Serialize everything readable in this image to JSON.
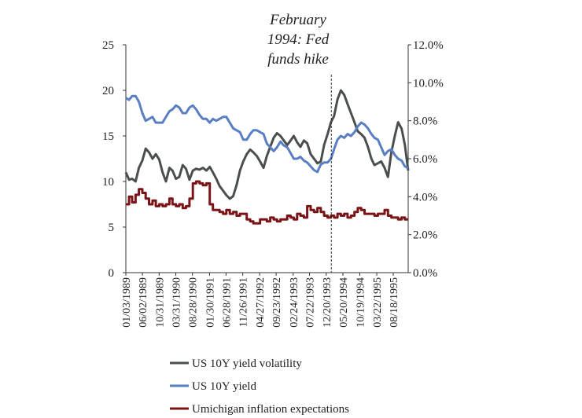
{
  "chart_data": {
    "type": "line",
    "title": "",
    "xlabel": "",
    "ylabel_left": "",
    "ylabel_right": "",
    "x_tick_labels": [
      "01/03/1989",
      "06/02/1989",
      "10/31/1989",
      "03/31/1990",
      "08/28/1990",
      "01/30/1991",
      "06/28/1991",
      "11/26/1991",
      "04/27/1992",
      "09/23/1992",
      "02/24/1993",
      "07/22/1993",
      "12/20/1993",
      "05/20/1994",
      "10/19/1994",
      "03/22/1995",
      "08/18/1995"
    ],
    "x_range": [
      "01/03/1989",
      "12/31/1995"
    ],
    "y_left": {
      "range": [
        0,
        25
      ],
      "ticks": [
        "0",
        "5",
        "10",
        "15",
        "20",
        "25"
      ]
    },
    "y_right": {
      "range": [
        0,
        12
      ],
      "ticks": [
        "0.0%",
        "2.0%",
        "4.0%",
        "6.0%",
        "8.0%",
        "10.0%",
        "12.0%"
      ]
    },
    "grid": false,
    "legend_position": "bottom",
    "annotation": {
      "lines": [
        "February",
        "1994: Fed",
        "funds hike"
      ],
      "x": "02/04/1994"
    },
    "series": [
      {
        "name": "US 10Y yield volatility",
        "axis": "left",
        "color": "#4a4f4c",
        "points": [
          [
            "1989-01-03",
            11.0
          ],
          [
            "1989-02-01",
            10.2
          ],
          [
            "1989-03-01",
            10.3
          ],
          [
            "1989-04-01",
            10.0
          ],
          [
            "1989-05-01",
            11.5
          ],
          [
            "1989-06-01",
            12.3
          ],
          [
            "1989-07-01",
            13.6
          ],
          [
            "1989-08-01",
            13.2
          ],
          [
            "1989-09-01",
            12.5
          ],
          [
            "1989-10-01",
            13.0
          ],
          [
            "1989-11-01",
            12.4
          ],
          [
            "1989-12-01",
            11.0
          ],
          [
            "1990-01-01",
            10.0
          ],
          [
            "1990-02-01",
            11.5
          ],
          [
            "1990-03-01",
            11.2
          ],
          [
            "1990-04-01",
            10.3
          ],
          [
            "1990-05-01",
            10.5
          ],
          [
            "1990-06-01",
            11.8
          ],
          [
            "1990-07-01",
            11.4
          ],
          [
            "1990-08-01",
            10.2
          ],
          [
            "1990-09-01",
            11.2
          ],
          [
            "1990-10-01",
            11.4
          ],
          [
            "1990-11-01",
            11.3
          ],
          [
            "1990-12-01",
            11.5
          ],
          [
            "1991-01-01",
            11.2
          ],
          [
            "1991-02-01",
            11.6
          ],
          [
            "1991-03-01",
            11.0
          ],
          [
            "1991-04-01",
            10.3
          ],
          [
            "1991-05-01",
            9.5
          ],
          [
            "1991-06-01",
            9.0
          ],
          [
            "1991-07-01",
            8.5
          ],
          [
            "1991-08-01",
            8.1
          ],
          [
            "1991-09-01",
            8.4
          ],
          [
            "1991-10-01",
            9.6
          ],
          [
            "1991-11-01",
            11.2
          ],
          [
            "1991-12-01",
            12.2
          ],
          [
            "1992-01-01",
            13.0
          ],
          [
            "1992-02-01",
            13.5
          ],
          [
            "1992-03-01",
            13.2
          ],
          [
            "1992-04-01",
            12.8
          ],
          [
            "1992-05-01",
            12.2
          ],
          [
            "1992-06-01",
            11.5
          ],
          [
            "1992-07-01",
            12.8
          ],
          [
            "1992-08-01",
            13.8
          ],
          [
            "1992-09-01",
            14.8
          ],
          [
            "1992-10-01",
            15.3
          ],
          [
            "1992-11-01",
            15.0
          ],
          [
            "1992-12-01",
            14.5
          ],
          [
            "1993-01-01",
            14.0
          ],
          [
            "1993-02-01",
            14.5
          ],
          [
            "1993-03-01",
            15.0
          ],
          [
            "1993-04-01",
            14.3
          ],
          [
            "1993-05-01",
            13.8
          ],
          [
            "1993-06-01",
            14.5
          ],
          [
            "1993-07-01",
            14.2
          ],
          [
            "1993-08-01",
            13.0
          ],
          [
            "1993-09-01",
            12.5
          ],
          [
            "1993-10-01",
            12.0
          ],
          [
            "1993-11-01",
            12.2
          ],
          [
            "1993-12-01",
            14.0
          ],
          [
            "1994-01-01",
            15.2
          ],
          [
            "1994-02-01",
            16.5
          ],
          [
            "1994-03-01",
            17.2
          ],
          [
            "1994-04-01",
            19.0
          ],
          [
            "1994-05-01",
            20.0
          ],
          [
            "1994-06-01",
            19.5
          ],
          [
            "1994-07-01",
            18.5
          ],
          [
            "1994-08-01",
            17.5
          ],
          [
            "1994-09-01",
            16.5
          ],
          [
            "1994-10-01",
            15.5
          ],
          [
            "1994-11-01",
            15.2
          ],
          [
            "1994-12-01",
            14.8
          ],
          [
            "1995-01-01",
            13.8
          ],
          [
            "1995-02-01",
            12.5
          ],
          [
            "1995-03-01",
            11.8
          ],
          [
            "1995-04-01",
            12.0
          ],
          [
            "1995-05-01",
            12.2
          ],
          [
            "1995-06-01",
            11.5
          ],
          [
            "1995-07-01",
            10.5
          ],
          [
            "1995-08-01",
            13.2
          ],
          [
            "1995-09-01",
            15.0
          ],
          [
            "1995-10-01",
            16.5
          ],
          [
            "1995-11-01",
            15.8
          ],
          [
            "1995-12-01",
            14.0
          ],
          [
            "1995-12-31",
            11.2
          ]
        ]
      },
      {
        "name": "US 10Y yield",
        "axis": "right",
        "color": "#5a7ec2",
        "points": [
          [
            "1989-01-03",
            9.2
          ],
          [
            "1989-02-01",
            9.1
          ],
          [
            "1989-03-01",
            9.3
          ],
          [
            "1989-04-01",
            9.3
          ],
          [
            "1989-05-01",
            9.0
          ],
          [
            "1989-06-01",
            8.4
          ],
          [
            "1989-07-01",
            8.0
          ],
          [
            "1989-08-01",
            8.1
          ],
          [
            "1989-09-01",
            8.2
          ],
          [
            "1989-10-01",
            7.9
          ],
          [
            "1989-11-01",
            7.9
          ],
          [
            "1989-12-01",
            7.9
          ],
          [
            "1990-01-01",
            8.2
          ],
          [
            "1990-02-01",
            8.5
          ],
          [
            "1990-03-01",
            8.6
          ],
          [
            "1990-04-01",
            8.8
          ],
          [
            "1990-05-01",
            8.7
          ],
          [
            "1990-06-01",
            8.4
          ],
          [
            "1990-07-01",
            8.4
          ],
          [
            "1990-08-01",
            8.7
          ],
          [
            "1990-09-01",
            8.8
          ],
          [
            "1990-10-01",
            8.6
          ],
          [
            "1990-11-01",
            8.3
          ],
          [
            "1990-12-01",
            8.1
          ],
          [
            "1991-01-01",
            8.1
          ],
          [
            "1991-02-01",
            7.9
          ],
          [
            "1991-03-01",
            8.1
          ],
          [
            "1991-04-01",
            8.0
          ],
          [
            "1991-05-01",
            8.1
          ],
          [
            "1991-06-01",
            8.2
          ],
          [
            "1991-07-01",
            8.2
          ],
          [
            "1991-08-01",
            7.9
          ],
          [
            "1991-09-01",
            7.6
          ],
          [
            "1991-10-01",
            7.5
          ],
          [
            "1991-11-01",
            7.4
          ],
          [
            "1991-12-01",
            7.0
          ],
          [
            "1992-01-01",
            7.0
          ],
          [
            "1992-02-01",
            7.3
          ],
          [
            "1992-03-01",
            7.5
          ],
          [
            "1992-04-01",
            7.5
          ],
          [
            "1992-05-01",
            7.4
          ],
          [
            "1992-06-01",
            7.3
          ],
          [
            "1992-07-01",
            6.8
          ],
          [
            "1992-08-01",
            6.6
          ],
          [
            "1992-09-01",
            6.4
          ],
          [
            "1992-10-01",
            6.6
          ],
          [
            "1992-11-01",
            6.9
          ],
          [
            "1992-12-01",
            6.7
          ],
          [
            "1993-01-01",
            6.6
          ],
          [
            "1993-02-01",
            6.3
          ],
          [
            "1993-03-01",
            6.0
          ],
          [
            "1993-04-01",
            6.0
          ],
          [
            "1993-05-01",
            6.1
          ],
          [
            "1993-06-01",
            5.9
          ],
          [
            "1993-07-01",
            5.8
          ],
          [
            "1993-08-01",
            5.6
          ],
          [
            "1993-09-01",
            5.4
          ],
          [
            "1993-10-01",
            5.3
          ],
          [
            "1993-11-01",
            5.7
          ],
          [
            "1993-12-01",
            5.8
          ],
          [
            "1994-01-01",
            5.8
          ],
          [
            "1994-02-01",
            6.0
          ],
          [
            "1994-03-01",
            6.5
          ],
          [
            "1994-04-01",
            7.0
          ],
          [
            "1994-05-01",
            7.2
          ],
          [
            "1994-06-01",
            7.1
          ],
          [
            "1994-07-01",
            7.3
          ],
          [
            "1994-08-01",
            7.2
          ],
          [
            "1994-09-01",
            7.4
          ],
          [
            "1994-10-01",
            7.7
          ],
          [
            "1994-11-01",
            7.9
          ],
          [
            "1994-12-01",
            7.8
          ],
          [
            "1995-01-01",
            7.6
          ],
          [
            "1995-02-01",
            7.3
          ],
          [
            "1995-03-01",
            7.1
          ],
          [
            "1995-04-01",
            7.0
          ],
          [
            "1995-05-01",
            6.6
          ],
          [
            "1995-06-01",
            6.2
          ],
          [
            "1995-07-01",
            6.4
          ],
          [
            "1995-08-01",
            6.5
          ],
          [
            "1995-09-01",
            6.2
          ],
          [
            "1995-10-01",
            6.0
          ],
          [
            "1995-11-01",
            5.9
          ],
          [
            "1995-12-01",
            5.6
          ],
          [
            "1995-12-31",
            5.5
          ]
        ]
      },
      {
        "name": "Umichigan inflation expectations",
        "axis": "right",
        "color": "#7b1417",
        "step": true,
        "points": [
          [
            "1989-01-03",
            3.6
          ],
          [
            "1989-02-01",
            4.0
          ],
          [
            "1989-03-01",
            3.7
          ],
          [
            "1989-04-01",
            4.1
          ],
          [
            "1989-05-01",
            4.4
          ],
          [
            "1989-06-01",
            4.2
          ],
          [
            "1989-07-01",
            3.9
          ],
          [
            "1989-08-01",
            3.6
          ],
          [
            "1989-09-01",
            3.8
          ],
          [
            "1989-10-01",
            3.5
          ],
          [
            "1989-11-01",
            3.6
          ],
          [
            "1989-12-01",
            3.5
          ],
          [
            "1990-01-01",
            3.6
          ],
          [
            "1990-02-01",
            3.9
          ],
          [
            "1990-03-01",
            3.6
          ],
          [
            "1990-04-01",
            3.5
          ],
          [
            "1990-05-01",
            3.6
          ],
          [
            "1990-06-01",
            3.4
          ],
          [
            "1990-07-01",
            3.5
          ],
          [
            "1990-08-01",
            3.9
          ],
          [
            "1990-09-01",
            4.7
          ],
          [
            "1990-10-01",
            4.8
          ],
          [
            "1990-11-01",
            4.7
          ],
          [
            "1990-12-01",
            4.6
          ],
          [
            "1991-01-01",
            4.7
          ],
          [
            "1991-02-01",
            3.6
          ],
          [
            "1991-03-01",
            3.3
          ],
          [
            "1991-04-01",
            3.3
          ],
          [
            "1991-05-01",
            3.2
          ],
          [
            "1991-06-01",
            3.1
          ],
          [
            "1991-07-01",
            3.3
          ],
          [
            "1991-08-01",
            3.1
          ],
          [
            "1991-09-01",
            3.2
          ],
          [
            "1991-10-01",
            3.0
          ],
          [
            "1991-11-01",
            3.1
          ],
          [
            "1991-12-01",
            3.1
          ],
          [
            "1992-01-01",
            2.8
          ],
          [
            "1992-02-01",
            2.7
          ],
          [
            "1992-03-01",
            2.6
          ],
          [
            "1992-04-01",
            2.6
          ],
          [
            "1992-05-01",
            2.8
          ],
          [
            "1992-06-01",
            2.8
          ],
          [
            "1992-07-01",
            2.7
          ],
          [
            "1992-08-01",
            2.9
          ],
          [
            "1992-09-01",
            2.8
          ],
          [
            "1992-10-01",
            2.7
          ],
          [
            "1992-11-01",
            2.8
          ],
          [
            "1992-12-01",
            2.8
          ],
          [
            "1993-01-01",
            3.0
          ],
          [
            "1993-02-01",
            2.9
          ],
          [
            "1993-03-01",
            2.8
          ],
          [
            "1993-04-01",
            3.1
          ],
          [
            "1993-05-01",
            3.0
          ],
          [
            "1993-06-01",
            2.9
          ],
          [
            "1993-07-01",
            3.5
          ],
          [
            "1993-08-01",
            3.3
          ],
          [
            "1993-09-01",
            3.2
          ],
          [
            "1993-10-01",
            3.4
          ],
          [
            "1993-11-01",
            3.2
          ],
          [
            "1993-12-01",
            3.0
          ],
          [
            "1994-01-01",
            2.9
          ],
          [
            "1994-02-01",
            3.0
          ],
          [
            "1994-03-01",
            2.9
          ],
          [
            "1994-04-01",
            3.1
          ],
          [
            "1994-05-01",
            3.0
          ],
          [
            "1994-06-01",
            3.1
          ],
          [
            "1994-07-01",
            2.9
          ],
          [
            "1994-08-01",
            3.0
          ],
          [
            "1994-09-01",
            3.2
          ],
          [
            "1994-10-01",
            3.4
          ],
          [
            "1994-11-01",
            3.3
          ],
          [
            "1994-12-01",
            3.1
          ],
          [
            "1995-01-01",
            3.1
          ],
          [
            "1995-02-01",
            3.1
          ],
          [
            "1995-03-01",
            3.0
          ],
          [
            "1995-04-01",
            3.1
          ],
          [
            "1995-05-01",
            3.1
          ],
          [
            "1995-06-01",
            3.3
          ],
          [
            "1995-07-01",
            3.0
          ],
          [
            "1995-08-01",
            2.9
          ],
          [
            "1995-09-01",
            2.9
          ],
          [
            "1995-10-01",
            2.8
          ],
          [
            "1995-11-01",
            2.9
          ],
          [
            "1995-12-01",
            2.8
          ],
          [
            "1995-12-31",
            2.8
          ]
        ]
      }
    ]
  }
}
